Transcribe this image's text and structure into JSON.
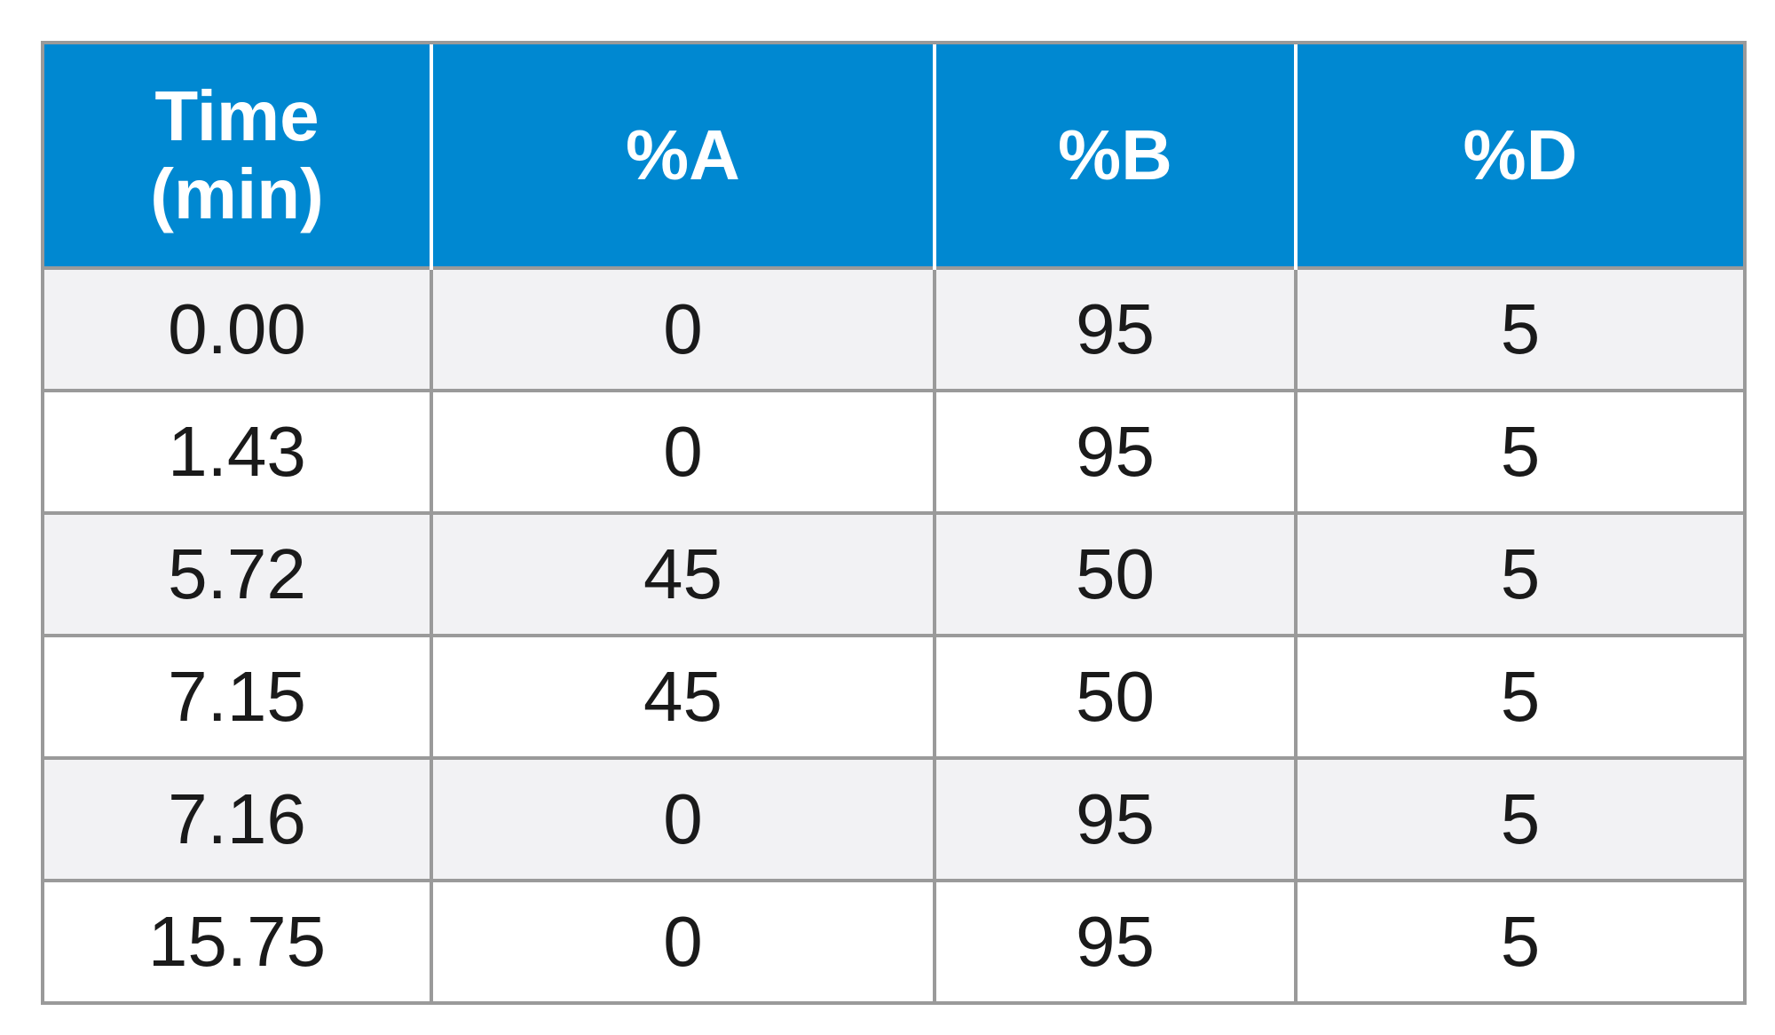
{
  "table": {
    "headers": [
      "Time\n(min)",
      "%A",
      "%B",
      "%D"
    ],
    "rows": [
      [
        "0.00",
        "0",
        "95",
        "5"
      ],
      [
        "1.43",
        "0",
        "95",
        "5"
      ],
      [
        "5.72",
        "45",
        "50",
        "5"
      ],
      [
        "7.15",
        "45",
        "50",
        "5"
      ],
      [
        "7.16",
        "0",
        "95",
        "5"
      ],
      [
        "15.75",
        "0",
        "95",
        "5"
      ]
    ]
  },
  "colors": {
    "header_bg": "#0088d1",
    "header_text": "#ffffff",
    "row_odd_bg": "#f2f2f4",
    "row_even_bg": "#ffffff",
    "grid": "#9a9a9a"
  }
}
